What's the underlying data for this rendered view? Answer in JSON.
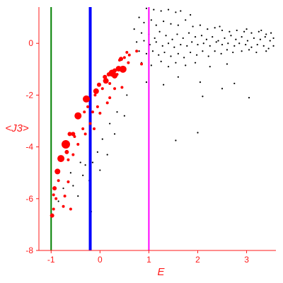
{
  "chart_data": {
    "type": "scatter",
    "title": "",
    "xlabel": "E",
    "ylabel": "<J3>",
    "xlim": [
      -1.25,
      3.6
    ],
    "ylim": [
      -8,
      1.4
    ],
    "x_ticks": [
      -1,
      0,
      1,
      2,
      3
    ],
    "x_tick_labels": [
      "-1",
      "0",
      "1",
      "2",
      "3"
    ],
    "y_ticks": [
      0,
      -2,
      -4,
      -6,
      -8
    ],
    "y_tick_labels": [
      "0",
      "-2",
      "-4",
      "-6",
      "-8"
    ],
    "grid": false,
    "legend": "none",
    "vertical_lines": [
      {
        "x": -1.0,
        "color": "#008000"
      },
      {
        "x": -0.2,
        "color": "#0000ff"
      },
      {
        "x": 1.0,
        "color": "#ff00ff"
      }
    ],
    "series": [
      {
        "kind": "highlighted",
        "color": "#ff0000",
        "points": [
          {
            "x": -0.7,
            "y": -3.9,
            "r": 6
          },
          {
            "x": -0.8,
            "y": -4.45,
            "r": 5
          },
          {
            "x": -0.87,
            "y": -4.95,
            "r": 4
          },
          {
            "x": -0.93,
            "y": -5.6,
            "r": 3
          },
          {
            "x": -0.45,
            "y": -2.8,
            "r": 5
          },
          {
            "x": -0.28,
            "y": -2.15,
            "r": 5
          },
          {
            "x": -0.08,
            "y": -1.85,
            "r": 4
          },
          {
            "x": 0.25,
            "y": -1.15,
            "r": 5
          },
          {
            "x": 0.47,
            "y": -1.0,
            "r": 5
          },
          {
            "x": 0.3,
            "y": -1.25,
            "r": 4
          },
          {
            "x": 0.12,
            "y": -1.45,
            "r": 4
          },
          {
            "x": 0.38,
            "y": -0.98,
            "r": 4
          },
          {
            "x": 0.43,
            "y": -0.6,
            "r": 3
          },
          {
            "x": -0.55,
            "y": -3.5,
            "r": 3
          },
          {
            "x": -0.62,
            "y": -3.5,
            "r": 3
          },
          {
            "x": -0.68,
            "y": -4.2,
            "r": 3
          },
          {
            "x": -0.78,
            "y": -4.5,
            "r": 2
          },
          {
            "x": -0.45,
            "y": -3.9,
            "r": 2
          },
          {
            "x": -0.52,
            "y": -3.6,
            "r": 2
          },
          {
            "x": -0.35,
            "y": -3.3,
            "r": 2
          },
          {
            "x": -0.55,
            "y": -4.3,
            "r": 2
          },
          {
            "x": -0.65,
            "y": -4.5,
            "r": 2
          },
          {
            "x": -0.72,
            "y": -5.9,
            "r": 2
          },
          {
            "x": -0.9,
            "y": -6.0,
            "r": 2
          },
          {
            "x": -0.95,
            "y": -6.4,
            "r": 2
          },
          {
            "x": -0.98,
            "y": -6.65,
            "r": 3
          },
          {
            "x": -0.75,
            "y": -6.3,
            "r": 2
          },
          {
            "x": -0.6,
            "y": -6.4,
            "r": 2
          },
          {
            "x": -0.25,
            "y": -2.45,
            "r": 2
          },
          {
            "x": -0.15,
            "y": -2.65,
            "r": 2
          },
          {
            "x": -0.1,
            "y": -2.0,
            "r": 2
          },
          {
            "x": -0.02,
            "y": -1.6,
            "r": 3
          },
          {
            "x": 0.05,
            "y": -1.75,
            "r": 2
          },
          {
            "x": 0.1,
            "y": -1.3,
            "r": 3
          },
          {
            "x": 0.18,
            "y": -1.2,
            "r": 3
          },
          {
            "x": 0.2,
            "y": -1.55,
            "r": 2
          },
          {
            "x": 0.3,
            "y": -1.05,
            "r": 3
          },
          {
            "x": 0.35,
            "y": -1.2,
            "r": 2
          },
          {
            "x": 0.4,
            "y": -0.65,
            "r": 2
          },
          {
            "x": 0.5,
            "y": -0.55,
            "r": 2
          },
          {
            "x": 0.55,
            "y": -0.35,
            "r": 2
          },
          {
            "x": 0.6,
            "y": -0.45,
            "r": 2
          },
          {
            "x": 0.58,
            "y": -0.75,
            "r": 2
          },
          {
            "x": 0.45,
            "y": -1.7,
            "r": 2
          },
          {
            "x": 0.3,
            "y": -1.75,
            "r": 2
          },
          {
            "x": 0.2,
            "y": -2.1,
            "r": 2
          },
          {
            "x": 0.15,
            "y": -2.3,
            "r": 2
          },
          {
            "x": -0.05,
            "y": -2.45,
            "r": 2
          },
          {
            "x": -0.2,
            "y": -3.1,
            "r": 2
          },
          {
            "x": -0.25,
            "y": -2.2,
            "r": 2
          },
          {
            "x": 0.0,
            "y": -2.7,
            "r": 2
          },
          {
            "x": -0.12,
            "y": -3.3,
            "r": 2
          },
          {
            "x": -0.3,
            "y": -3.5,
            "r": 2
          },
          {
            "x": -0.32,
            "y": -2.65,
            "r": 2
          },
          {
            "x": 0.75,
            "y": -0.3,
            "r": 2
          },
          {
            "x": 0.85,
            "y": -0.8,
            "r": 2
          },
          {
            "x": -0.85,
            "y": -5.3,
            "r": 2
          },
          {
            "x": -0.95,
            "y": -5.85,
            "r": 2
          },
          {
            "x": -0.65,
            "y": -5.35,
            "r": 2
          }
        ]
      },
      {
        "kind": "background",
        "color": "#000000",
        "points": [
          {
            "x": 0.95,
            "y": 1.35
          },
          {
            "x": 1.1,
            "y": 1.3
          },
          {
            "x": 1.25,
            "y": 1.25
          },
          {
            "x": 1.4,
            "y": 1.3
          },
          {
            "x": 1.55,
            "y": 1.2
          },
          {
            "x": 1.65,
            "y": 1.25
          },
          {
            "x": 0.8,
            "y": 1.0
          },
          {
            "x": 0.9,
            "y": 0.8
          },
          {
            "x": 1.05,
            "y": 0.9
          },
          {
            "x": 1.15,
            "y": 0.7
          },
          {
            "x": 1.3,
            "y": 0.85
          },
          {
            "x": 1.45,
            "y": 0.75
          },
          {
            "x": 1.6,
            "y": 0.7
          },
          {
            "x": 1.75,
            "y": 0.9
          },
          {
            "x": 1.9,
            "y": 0.65
          },
          {
            "x": 2.05,
            "y": 0.7
          },
          {
            "x": 2.2,
            "y": 0.55
          },
          {
            "x": 2.35,
            "y": 0.6
          },
          {
            "x": 2.5,
            "y": 0.5
          },
          {
            "x": 2.65,
            "y": 0.45
          },
          {
            "x": 2.8,
            "y": 0.5
          },
          {
            "x": 2.95,
            "y": 0.45
          },
          {
            "x": 3.1,
            "y": 0.4
          },
          {
            "x": 3.25,
            "y": 0.45
          },
          {
            "x": 3.4,
            "y": 0.35
          },
          {
            "x": 3.5,
            "y": 0.4
          },
          {
            "x": 0.7,
            "y": 0.55
          },
          {
            "x": 0.85,
            "y": 0.4
          },
          {
            "x": 1.0,
            "y": 0.35
          },
          {
            "x": 1.12,
            "y": 0.2
          },
          {
            "x": 1.22,
            "y": 0.45
          },
          {
            "x": 1.35,
            "y": 0.3
          },
          {
            "x": 1.48,
            "y": 0.15
          },
          {
            "x": 1.58,
            "y": 0.35
          },
          {
            "x": 1.7,
            "y": 0.2
          },
          {
            "x": 1.82,
            "y": 0.4
          },
          {
            "x": 1.95,
            "y": 0.25
          },
          {
            "x": 2.08,
            "y": 0.3
          },
          {
            "x": 2.18,
            "y": 0.15
          },
          {
            "x": 2.3,
            "y": 0.25
          },
          {
            "x": 2.42,
            "y": 0.1
          },
          {
            "x": 2.55,
            "y": 0.2
          },
          {
            "x": 2.68,
            "y": 0.3
          },
          {
            "x": 2.78,
            "y": 0.15
          },
          {
            "x": 2.9,
            "y": 0.25
          },
          {
            "x": 3.02,
            "y": 0.1
          },
          {
            "x": 3.15,
            "y": 0.2
          },
          {
            "x": 3.28,
            "y": 0.15
          },
          {
            "x": 3.38,
            "y": 0.25
          },
          {
            "x": 3.48,
            "y": 0.1
          },
          {
            "x": 3.55,
            "y": 0.2
          },
          {
            "x": 0.75,
            "y": 0.05
          },
          {
            "x": 0.9,
            "y": 0.1
          },
          {
            "x": 1.02,
            "y": -0.05
          },
          {
            "x": 1.15,
            "y": 0.05
          },
          {
            "x": 1.28,
            "y": -0.1
          },
          {
            "x": 1.4,
            "y": 0.0
          },
          {
            "x": 1.52,
            "y": -0.15
          },
          {
            "x": 1.65,
            "y": -0.05
          },
          {
            "x": 1.78,
            "y": -0.1
          },
          {
            "x": 1.88,
            "y": 0.05
          },
          {
            "x": 2.0,
            "y": -0.05
          },
          {
            "x": 2.12,
            "y": 0.0
          },
          {
            "x": 2.25,
            "y": -0.1
          },
          {
            "x": 2.38,
            "y": 0.05
          },
          {
            "x": 2.5,
            "y": -0.05
          },
          {
            "x": 2.62,
            "y": 0.0
          },
          {
            "x": 2.75,
            "y": -0.1
          },
          {
            "x": 2.85,
            "y": 0.0
          },
          {
            "x": 2.98,
            "y": -0.05
          },
          {
            "x": 3.1,
            "y": -0.15
          },
          {
            "x": 3.22,
            "y": -0.05
          },
          {
            "x": 3.35,
            "y": -0.1
          },
          {
            "x": 3.45,
            "y": -0.2
          },
          {
            "x": 3.55,
            "y": -0.1
          },
          {
            "x": 0.8,
            "y": -0.3
          },
          {
            "x": 0.95,
            "y": -0.4
          },
          {
            "x": 1.08,
            "y": -0.3
          },
          {
            "x": 1.2,
            "y": -0.45
          },
          {
            "x": 1.32,
            "y": -0.35
          },
          {
            "x": 1.45,
            "y": -0.5
          },
          {
            "x": 1.6,
            "y": -0.4
          },
          {
            "x": 1.72,
            "y": -0.55
          },
          {
            "x": 1.85,
            "y": -0.35
          },
          {
            "x": 1.98,
            "y": -0.45
          },
          {
            "x": 2.1,
            "y": -0.3
          },
          {
            "x": 2.22,
            "y": -0.5
          },
          {
            "x": 2.35,
            "y": -0.3
          },
          {
            "x": 2.48,
            "y": -0.4
          },
          {
            "x": 2.6,
            "y": -0.25
          },
          {
            "x": 2.72,
            "y": -0.35
          },
          {
            "x": 2.9,
            "y": -0.3
          },
          {
            "x": 3.05,
            "y": -0.25
          },
          {
            "x": 3.2,
            "y": -0.35
          },
          {
            "x": 3.4,
            "y": -0.3
          },
          {
            "x": 0.85,
            "y": -0.75
          },
          {
            "x": 1.05,
            "y": -0.85
          },
          {
            "x": 1.25,
            "y": -0.7
          },
          {
            "x": 1.4,
            "y": -0.9
          },
          {
            "x": 1.55,
            "y": -0.75
          },
          {
            "x": 1.75,
            "y": -0.85
          },
          {
            "x": 1.95,
            "y": -0.75
          },
          {
            "x": 2.25,
            "y": -0.9
          },
          {
            "x": 2.6,
            "y": -0.8
          },
          {
            "x": 0.95,
            "y": -1.5
          },
          {
            "x": 1.3,
            "y": -1.6
          },
          {
            "x": 1.6,
            "y": -1.3
          },
          {
            "x": 2.05,
            "y": -1.5
          },
          {
            "x": 2.5,
            "y": -1.75
          },
          {
            "x": 2.75,
            "y": -1.55
          },
          {
            "x": 3.05,
            "y": -2.1
          },
          {
            "x": 2.1,
            "y": -2.05
          },
          {
            "x": 0.55,
            "y": -2.0
          },
          {
            "x": 0.35,
            "y": -2.65
          },
          {
            "x": 0.5,
            "y": -2.8
          },
          {
            "x": 0.2,
            "y": -3.1
          },
          {
            "x": 0.05,
            "y": -3.7
          },
          {
            "x": -0.05,
            "y": -4.2
          },
          {
            "x": 0.15,
            "y": -4.3
          },
          {
            "x": 0.3,
            "y": -3.5
          },
          {
            "x": -0.15,
            "y": -4.6
          },
          {
            "x": 0.0,
            "y": -4.9
          },
          {
            "x": -0.22,
            "y": -5.3
          },
          {
            "x": -0.18,
            "y": -6.5
          },
          {
            "x": -0.35,
            "y": -5.1
          },
          {
            "x": -0.45,
            "y": -5.9
          },
          {
            "x": -0.3,
            "y": -4.7
          },
          {
            "x": 1.55,
            "y": -3.75
          },
          {
            "x": 2.0,
            "y": -3.45
          },
          {
            "x": -0.6,
            "y": -5.0
          },
          {
            "x": -0.55,
            "y": -5.5
          },
          {
            "x": -0.75,
            "y": -5.6
          },
          {
            "x": -0.85,
            "y": -6.1
          },
          {
            "x": -0.4,
            "y": -4.6
          },
          {
            "x": 3.0,
            "y": 0.55
          },
          {
            "x": 3.3,
            "y": 0.5
          },
          {
            "x": 2.45,
            "y": 0.65
          },
          {
            "x": 1.85,
            "y": 1.1
          }
        ]
      }
    ]
  }
}
